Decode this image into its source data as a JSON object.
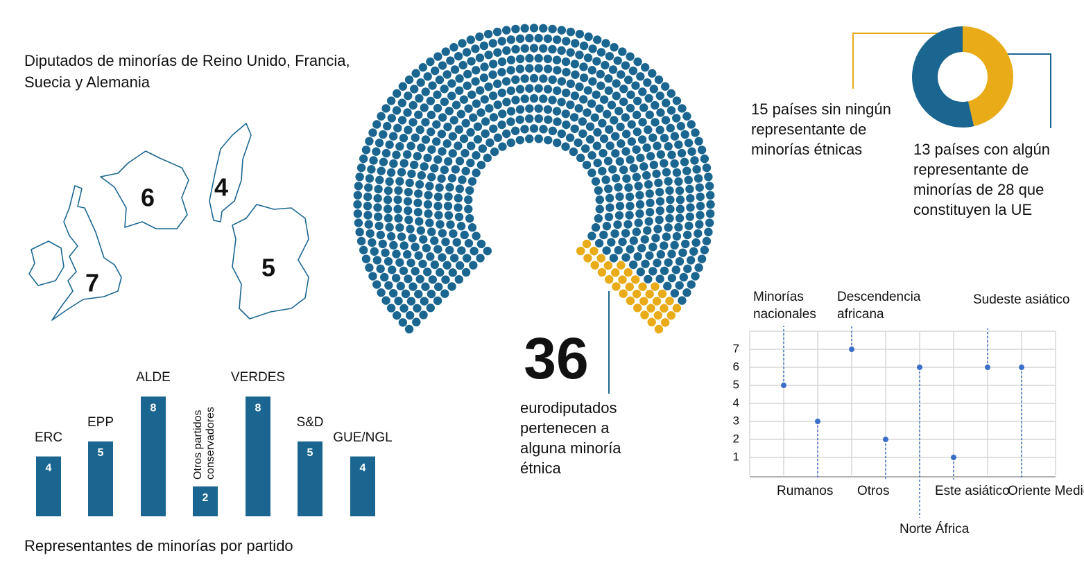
{
  "chart_data": [
    {
      "type": "map",
      "title": "Diputados de minorías de Reino Unido, Francia, Suecia y Alemania",
      "values": [
        7,
        6,
        4,
        5
      ],
      "color": "#1b6690"
    },
    {
      "type": "parliament",
      "values": [
        715,
        36
      ],
      "colors": [
        "#1b6690",
        "#e9ab17"
      ],
      "annotation": "eurodiputados pertenecen a alguna minoría étnica"
    },
    {
      "type": "donut",
      "values": [
        15,
        13
      ],
      "colors": [
        "#1b6690",
        "#e9ab17"
      ],
      "labels": [
        "15 países sin ningún representante de minorías étnicas",
        "13 países con algún representante de minorías de 28 que constituyen la UE"
      ]
    },
    {
      "type": "lollipop",
      "categories": [
        "Minorías nacionales",
        "Rumanos",
        "Descendencia africana",
        "Otros",
        "Norte África",
        "Este asiático",
        "Sudeste asiático",
        "Oriente Medio"
      ],
      "values": [
        5,
        3,
        7,
        2,
        6,
        1,
        6,
        6
      ],
      "color": "#3a6fc8",
      "ylim": [
        0,
        8
      ],
      "yticks": [
        1,
        2,
        3,
        4,
        5,
        6,
        7
      ],
      "grid": true
    },
    {
      "type": "bar",
      "title": "Representantes de minorías por partido",
      "categories": [
        "ERC",
        "EPP",
        "ALDE",
        "Otros partidos conservadores",
        "VERDES",
        "S&D",
        "GUE/NGL"
      ],
      "values": [
        4,
        5,
        8,
        2,
        8,
        5,
        4
      ],
      "color": "#1b6690"
    }
  ]
}
